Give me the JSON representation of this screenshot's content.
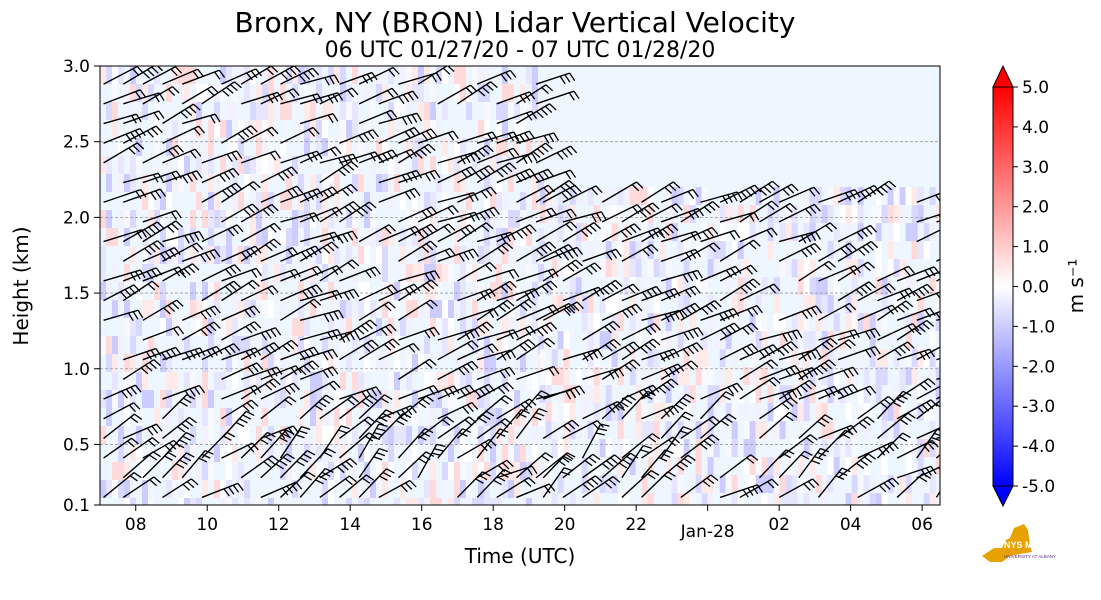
{
  "chart_data": {
    "type": "heatmap",
    "title": "Bronx, NY (BRON) Lidar Vertical Velocity",
    "subtitle": "06 UTC 01/27/20 - 07 UTC 01/28/20",
    "xlabel": "Time (UTC)",
    "ylabel": "Height (km)",
    "x_ticks": [
      "08",
      "10",
      "12",
      "14",
      "16",
      "18",
      "20",
      "22",
      "Jan-28",
      "02",
      "04",
      "06"
    ],
    "x_tick_hours": [
      8,
      10,
      12,
      14,
      16,
      18,
      20,
      22,
      24,
      26,
      28,
      30
    ],
    "xlim_hours": [
      7.0,
      30.5
    ],
    "y_ticks": [
      "0.1",
      "0.5",
      "1.0",
      "1.5",
      "2.0",
      "2.5",
      "3.0"
    ],
    "y_tick_values": [
      0.1,
      0.5,
      1.0,
      1.5,
      2.0,
      2.5,
      3.0
    ],
    "ylim": [
      0.1,
      3.0
    ],
    "gridlines_y": [
      0.5,
      1.0,
      1.5,
      2.0,
      2.5
    ],
    "colorbar": {
      "label": "m s⁻¹",
      "range": [
        -5.0,
        5.0
      ],
      "tick_labels": [
        "5.0",
        "4.0",
        "3.0",
        "2.0",
        "1.0",
        "0.0",
        "-1.0",
        "-2.0",
        "-3.0",
        "-4.0",
        "-5.0"
      ],
      "tick_values": [
        5,
        4,
        3,
        2,
        1,
        0,
        -1,
        -2,
        -3,
        -4,
        -5
      ],
      "colors": [
        "#0000ff",
        "#ffffff",
        "#ff0000"
      ]
    },
    "data_coverage": [
      {
        "start_hour": 7.0,
        "end_hour": 19.3,
        "top_km": 3.0
      },
      {
        "start_hour": 19.3,
        "end_hour": 30.5,
        "top_km": 2.2
      }
    ],
    "wind_barbs": {
      "present": true,
      "note": "wind barbs overlaid on velocity field"
    }
  },
  "branding": {
    "logo_text": "NYS Mesonet",
    "logo_subtext": "UNIVERSITY AT ALBANY",
    "logo_color": "#5a2d82",
    "logo_state_color": "#e8a200"
  }
}
